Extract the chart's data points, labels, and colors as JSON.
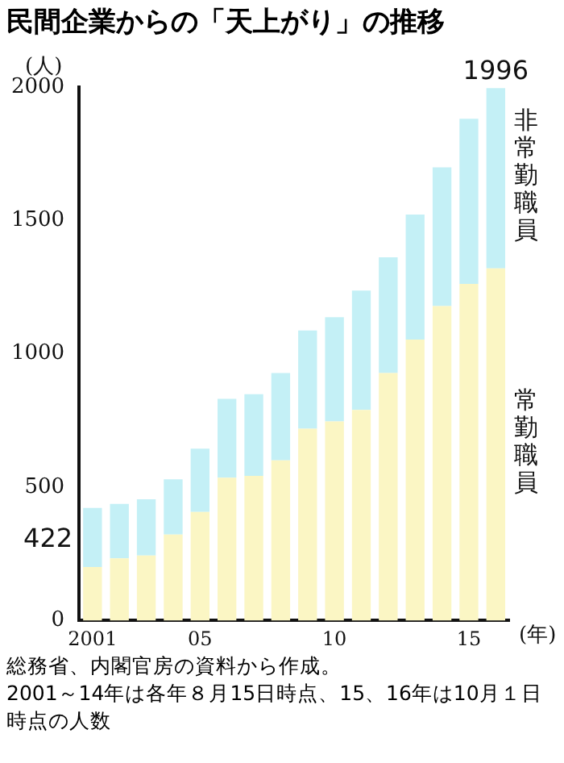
{
  "chart_data": {
    "type": "bar",
    "title": "民間企業からの「天上がり」の推移",
    "ylabel": "(人)",
    "xlabel": "(年)",
    "categories": [
      "2001",
      null,
      null,
      null,
      "05",
      null,
      null,
      null,
      null,
      "10",
      null,
      null,
      null,
      null,
      "15",
      null
    ],
    "stacked": true,
    "series": [
      {
        "name": "常勤職員",
        "color": "#fbf6c4",
        "values": [
          200,
          233,
          243,
          322,
          407,
          535,
          542,
          600,
          719,
          746,
          789,
          928,
          1053,
          1179,
          1262,
          1320
        ]
      },
      {
        "name": "非常勤職員",
        "color": "#c4f0f6",
        "values": [
          222,
          204,
          211,
          207,
          237,
          296,
          306,
          328,
          368,
          391,
          448,
          434,
          469,
          520,
          619,
          676
        ]
      }
    ],
    "totals": [
      "422",
      null,
      null,
      null,
      null,
      null,
      null,
      null,
      null,
      null,
      null,
      null,
      null,
      null,
      null,
      "1996"
    ],
    "ylim": [
      0,
      2000
    ],
    "yticks": [
      0,
      500,
      1000,
      1500,
      2000
    ],
    "grid": false,
    "legend": false,
    "annotations": [
      "総務省、内閣官房の資料から作成。",
      "2001～14年は各年８月15日時点、15、16年は10月１日時点の人数"
    ]
  }
}
